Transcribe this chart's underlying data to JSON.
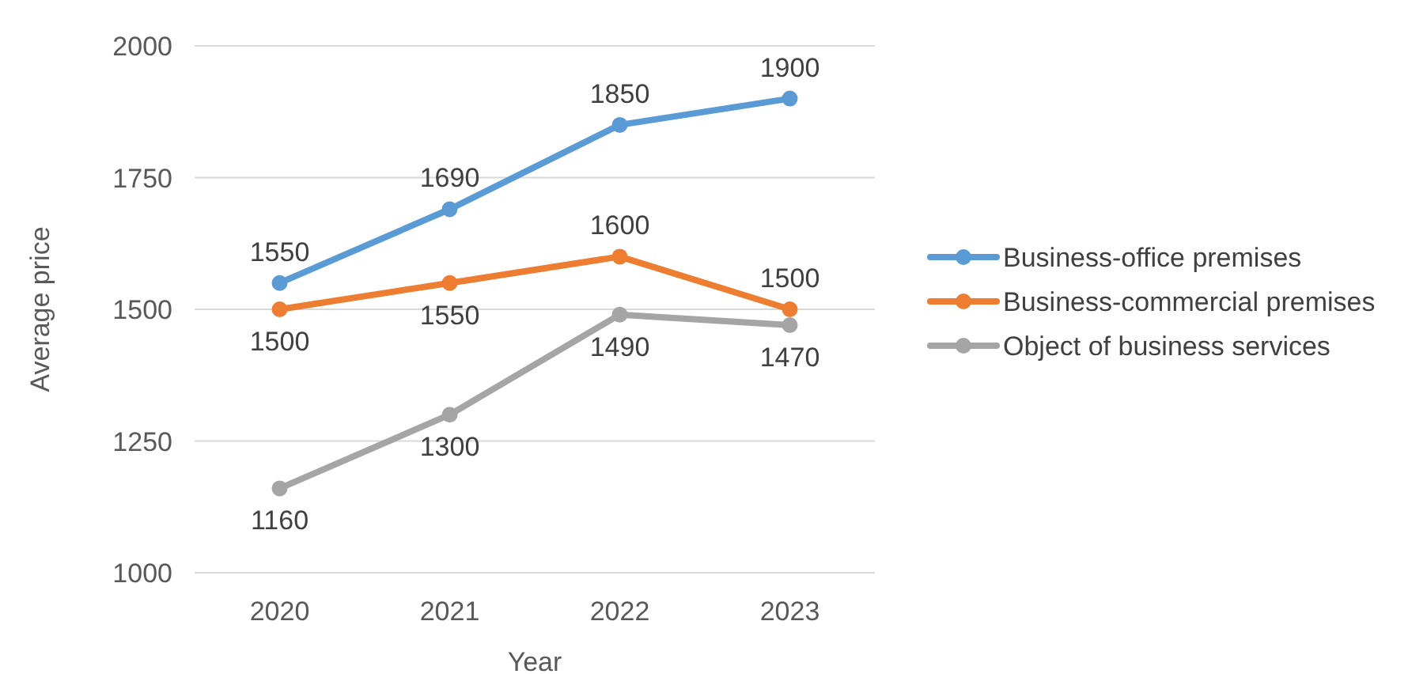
{
  "chart_data": {
    "type": "line",
    "xlabel": "Year",
    "ylabel": "Average price",
    "categories": [
      "2020",
      "2021",
      "2022",
      "2023"
    ],
    "series": [
      {
        "name": "Business-office premises",
        "color": "#5b9bd5",
        "values": [
          1550,
          1690,
          1850,
          1900
        ]
      },
      {
        "name": "Business-commercial premises",
        "color": "#ed7d31",
        "values": [
          1500,
          1550,
          1600,
          1500
        ]
      },
      {
        "name": "Object of business services",
        "color": "#a5a5a5",
        "values": [
          1160,
          1300,
          1490,
          1470
        ]
      }
    ],
    "ylim": [
      1000,
      2000
    ],
    "yticks": [
      1000,
      1250,
      1500,
      1750,
      2000
    ],
    "grid": "y",
    "legend": "right",
    "marker": "circle",
    "data_labels": true
  }
}
